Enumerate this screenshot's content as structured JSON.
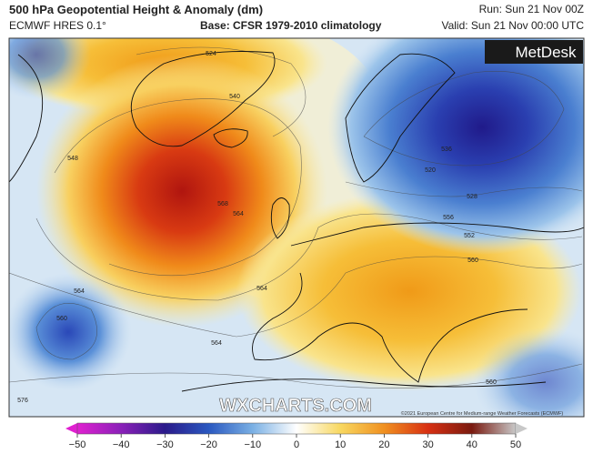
{
  "header": {
    "title": "500 hPa Geopotential Height & Anomaly (dm)",
    "model": "ECMWF HRES 0.1°",
    "base": "Base: CFSR 1979-2010 climatology",
    "run": "Run: Sun 21 Nov 00Z",
    "valid": "Valid: Sun 21 Nov 00:00 UTC"
  },
  "logo": "MetDesk",
  "watermark": "WXCHARTS.COM",
  "copyright": "©2021 European Centre for Medium-range Weather Forecasts (ECMWF)",
  "contour_labels": [
    "524",
    "540",
    "548",
    "568",
    "564",
    "564",
    "564",
    "564",
    "576",
    "536",
    "520",
    "528",
    "556",
    "552",
    "560",
    "560",
    "560"
  ],
  "colorbar": {
    "ticks": [
      "−50",
      "−40",
      "−30",
      "−20",
      "−10",
      "0",
      "10",
      "20",
      "30",
      "40",
      "50"
    ]
  }
}
